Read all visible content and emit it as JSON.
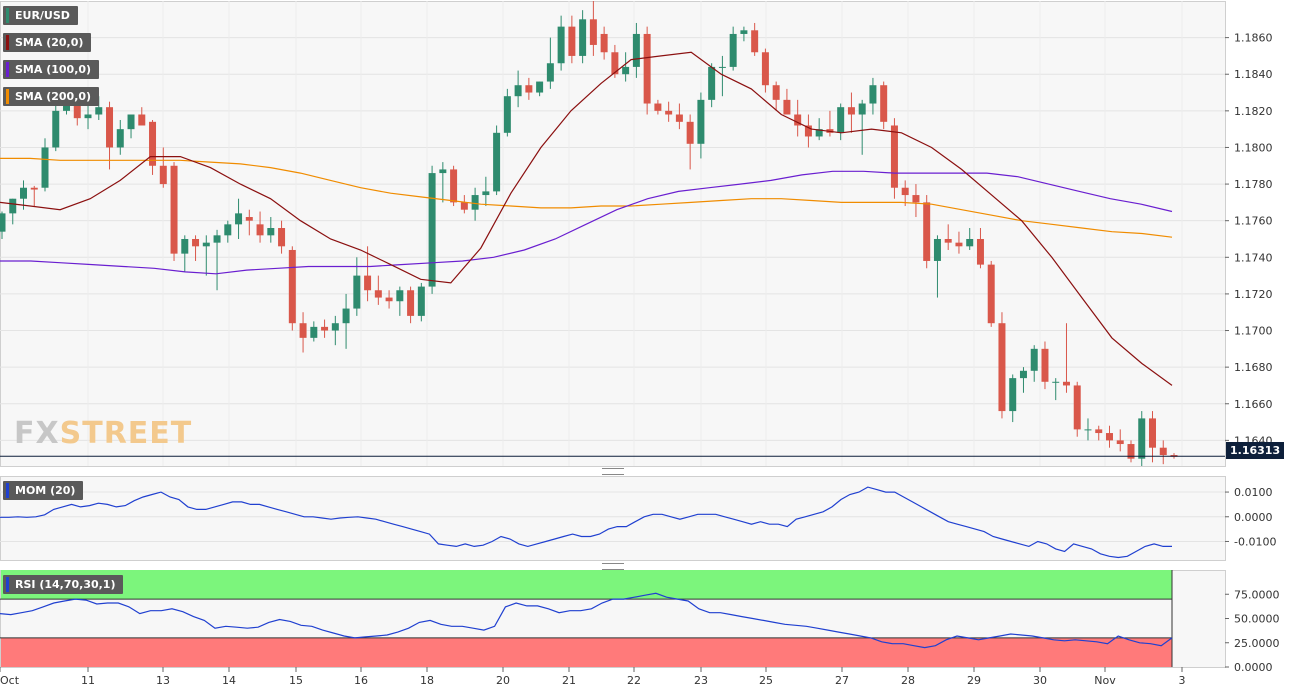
{
  "legend": {
    "pair": "EUR/USD",
    "sma20": "SMA (20,0)",
    "sma100": "SMA (100,0)",
    "sma200": "SMA (200,0)",
    "mom": "MOM (20)",
    "rsi": "RSI (14,70,30,1)"
  },
  "logo": {
    "part1": "FX",
    "part2": "STREET"
  },
  "colors": {
    "up": "#2e8b6e",
    "down": "#d9574a",
    "sma20": "#8b1010",
    "sma100": "#6a1fd0",
    "sma200": "#f08c00",
    "mom": "#2040d0",
    "rsi": "#2040d0",
    "rsi_upper": "#7cf57c",
    "rsi_lower": "#ff7a7a"
  },
  "chart_data": [
    {
      "type": "candlestick",
      "title": "EUR/USD",
      "ylim": [
        1.1626,
        1.188
      ],
      "yticks": [
        "1.1640",
        "1.1660",
        "1.1680",
        "1.1700",
        "1.1720",
        "1.1740",
        "1.1760",
        "1.1780",
        "1.1800",
        "1.1820",
        "1.1840",
        "1.1860"
      ],
      "last_price": "1.16313",
      "candles": [
        [
          1.1754,
          1.1765,
          1.175,
          1.1764
        ],
        [
          1.1764,
          1.1772,
          1.1758,
          1.1772
        ],
        [
          1.1772,
          1.1782,
          1.1766,
          1.1778
        ],
        [
          1.1778,
          1.1779,
          1.1768,
          1.1777
        ],
        [
          1.1778,
          1.1805,
          1.1776,
          1.18
        ],
        [
          1.18,
          1.1825,
          1.1798,
          1.182
        ],
        [
          1.182,
          1.1828,
          1.1818,
          1.1826
        ],
        [
          1.1826,
          1.183,
          1.1812,
          1.1816
        ],
        [
          1.1816,
          1.1825,
          1.181,
          1.1818
        ],
        [
          1.1818,
          1.1828,
          1.1815,
          1.1822
        ],
        [
          1.1822,
          1.1825,
          1.1788,
          1.18
        ],
        [
          1.18,
          1.1815,
          1.1796,
          1.181
        ],
        [
          1.181,
          1.1818,
          1.1805,
          1.1818
        ],
        [
          1.1818,
          1.1822,
          1.1812,
          1.1812
        ],
        [
          1.1814,
          1.1815,
          1.1785,
          1.179
        ],
        [
          1.179,
          1.18,
          1.1778,
          1.178
        ],
        [
          1.179,
          1.1792,
          1.1738,
          1.1742
        ],
        [
          1.1742,
          1.1752,
          1.1732,
          1.175
        ],
        [
          1.175,
          1.1752,
          1.1738,
          1.1746
        ],
        [
          1.1746,
          1.1752,
          1.173,
          1.1748
        ],
        [
          1.1748,
          1.1755,
          1.1722,
          1.1752
        ],
        [
          1.1752,
          1.176,
          1.1748,
          1.1758
        ],
        [
          1.1758,
          1.1772,
          1.175,
          1.1764
        ],
        [
          1.1762,
          1.1766,
          1.1752,
          1.176
        ],
        [
          1.1758,
          1.1765,
          1.1748,
          1.1752
        ],
        [
          1.1752,
          1.1762,
          1.1748,
          1.1756
        ],
        [
          1.1756,
          1.176,
          1.1742,
          1.1746
        ],
        [
          1.1744,
          1.1746,
          1.17,
          1.1704
        ],
        [
          1.1704,
          1.171,
          1.1688,
          1.1696
        ],
        [
          1.1696,
          1.1705,
          1.1694,
          1.1702
        ],
        [
          1.1702,
          1.1706,
          1.1696,
          1.17
        ],
        [
          1.17,
          1.1708,
          1.1692,
          1.1704
        ],
        [
          1.1704,
          1.172,
          1.169,
          1.1712
        ],
        [
          1.1712,
          1.174,
          1.1708,
          1.173
        ],
        [
          1.173,
          1.1746,
          1.1716,
          1.1722
        ],
        [
          1.1722,
          1.173,
          1.1714,
          1.1718
        ],
        [
          1.1718,
          1.1722,
          1.1712,
          1.1716
        ],
        [
          1.1716,
          1.1724,
          1.1708,
          1.1722
        ],
        [
          1.1722,
          1.1724,
          1.1704,
          1.1708
        ],
        [
          1.1708,
          1.1726,
          1.1705,
          1.1724
        ],
        [
          1.1724,
          1.179,
          1.172,
          1.1786
        ],
        [
          1.1786,
          1.1792,
          1.177,
          1.1788
        ],
        [
          1.1788,
          1.179,
          1.1768,
          1.177
        ],
        [
          1.177,
          1.1774,
          1.1764,
          1.1766
        ],
        [
          1.1766,
          1.1778,
          1.176,
          1.1774
        ],
        [
          1.1774,
          1.1784,
          1.1768,
          1.1776
        ],
        [
          1.1776,
          1.1812,
          1.1774,
          1.1808
        ],
        [
          1.1808,
          1.1832,
          1.1806,
          1.1828
        ],
        [
          1.1828,
          1.1842,
          1.1822,
          1.1834
        ],
        [
          1.1834,
          1.1838,
          1.1826,
          1.183
        ],
        [
          1.183,
          1.1836,
          1.1828,
          1.1836
        ],
        [
          1.1836,
          1.186,
          1.1832,
          1.1846
        ],
        [
          1.1846,
          1.1872,
          1.1842,
          1.1866
        ],
        [
          1.1866,
          1.1872,
          1.1846,
          1.185
        ],
        [
          1.185,
          1.1875,
          1.1846,
          1.187
        ],
        [
          1.187,
          1.188,
          1.185,
          1.1856
        ],
        [
          1.1862,
          1.1866,
          1.1848,
          1.1852
        ],
        [
          1.1852,
          1.1856,
          1.1838,
          1.184
        ],
        [
          1.184,
          1.1852,
          1.1836,
          1.1844
        ],
        [
          1.1844,
          1.1868,
          1.1838,
          1.1862
        ],
        [
          1.1862,
          1.1866,
          1.1818,
          1.1824
        ],
        [
          1.1824,
          1.1826,
          1.1818,
          1.182
        ],
        [
          1.182,
          1.1825,
          1.1814,
          1.1818
        ],
        [
          1.1818,
          1.1824,
          1.181,
          1.1814
        ],
        [
          1.1814,
          1.1818,
          1.1788,
          1.1802
        ],
        [
          1.1802,
          1.183,
          1.1794,
          1.1826
        ],
        [
          1.1826,
          1.1846,
          1.1822,
          1.1844
        ],
        [
          1.1844,
          1.185,
          1.1828,
          1.1844
        ],
        [
          1.1844,
          1.1866,
          1.1842,
          1.1862
        ],
        [
          1.1862,
          1.1866,
          1.1858,
          1.1864
        ],
        [
          1.1864,
          1.1868,
          1.185,
          1.1852
        ],
        [
          1.1852,
          1.1854,
          1.183,
          1.1834
        ],
        [
          1.1834,
          1.1836,
          1.182,
          1.1826
        ],
        [
          1.1826,
          1.1832,
          1.1818,
          1.1818
        ],
        [
          1.1818,
          1.1826,
          1.1806,
          1.1812
        ],
        [
          1.1812,
          1.1818,
          1.18,
          1.1806
        ],
        [
          1.1806,
          1.1816,
          1.1804,
          1.181
        ],
        [
          1.181,
          1.182,
          1.1806,
          1.1808
        ],
        [
          1.1808,
          1.1824,
          1.1804,
          1.1822
        ],
        [
          1.1822,
          1.183,
          1.1808,
          1.1818
        ],
        [
          1.1818,
          1.1826,
          1.1796,
          1.1824
        ],
        [
          1.1824,
          1.1838,
          1.1818,
          1.1834
        ],
        [
          1.1834,
          1.1836,
          1.181,
          1.1814
        ],
        [
          1.1812,
          1.1816,
          1.1772,
          1.1778
        ],
        [
          1.1778,
          1.1782,
          1.1768,
          1.1774
        ],
        [
          1.1774,
          1.178,
          1.1762,
          1.177
        ],
        [
          1.177,
          1.1774,
          1.1734,
          1.1738
        ],
        [
          1.1738,
          1.1752,
          1.1718,
          1.175
        ],
        [
          1.175,
          1.1758,
          1.1744,
          1.1748
        ],
        [
          1.1748,
          1.1754,
          1.1742,
          1.1746
        ],
        [
          1.1746,
          1.1756,
          1.1744,
          1.175
        ],
        [
          1.175,
          1.1756,
          1.1734,
          1.1736
        ],
        [
          1.1736,
          1.1738,
          1.1702,
          1.1704
        ],
        [
          1.1704,
          1.171,
          1.1652,
          1.1656
        ],
        [
          1.1656,
          1.1676,
          1.165,
          1.1674
        ],
        [
          1.1674,
          1.168,
          1.1666,
          1.1678
        ],
        [
          1.1678,
          1.1692,
          1.1672,
          1.169
        ],
        [
          1.169,
          1.1694,
          1.1668,
          1.1672
        ],
        [
          1.1672,
          1.1674,
          1.1662,
          1.1672
        ],
        [
          1.1672,
          1.1704,
          1.1666,
          1.167
        ],
        [
          1.167,
          1.1672,
          1.1642,
          1.1646
        ],
        [
          1.1646,
          1.1652,
          1.164,
          1.1646
        ],
        [
          1.1646,
          1.1648,
          1.164,
          1.1644
        ],
        [
          1.1644,
          1.1648,
          1.1636,
          1.164
        ],
        [
          1.164,
          1.1646,
          1.1634,
          1.1638
        ],
        [
          1.1638,
          1.164,
          1.1628,
          1.163
        ],
        [
          1.163,
          1.1656,
          1.1626,
          1.1652
        ],
        [
          1.1652,
          1.1656,
          1.1628,
          1.1636
        ],
        [
          1.1636,
          1.164,
          1.1627,
          1.1632
        ],
        [
          1.1632,
          1.1633,
          1.163,
          1.1631
        ]
      ],
      "sma20": [
        1.177,
        1.1768,
        1.1766,
        1.1772,
        1.1782,
        1.1795,
        1.1795,
        1.1789,
        1.178,
        1.1772,
        1.176,
        1.175,
        1.1744,
        1.1736,
        1.1728,
        1.1726,
        1.1745,
        1.1775,
        1.18,
        1.182,
        1.1835,
        1.1848,
        1.185,
        1.1852,
        1.184,
        1.1832,
        1.1818,
        1.181,
        1.1808,
        1.181,
        1.1808,
        1.18,
        1.1788,
        1.1774,
        1.176,
        1.174,
        1.1718,
        1.1696,
        1.1682,
        1.167
      ],
      "sma100": [
        1.1738,
        1.1738,
        1.1737,
        1.1736,
        1.1735,
        1.1734,
        1.1732,
        1.1731,
        1.1733,
        1.1734,
        1.1735,
        1.1735,
        1.1735,
        1.1736,
        1.1737,
        1.1738,
        1.174,
        1.1744,
        1.175,
        1.1758,
        1.1766,
        1.1772,
        1.1776,
        1.1778,
        1.178,
        1.1782,
        1.1785,
        1.1787,
        1.1787,
        1.1786,
        1.1786,
        1.1786,
        1.1786,
        1.1784,
        1.178,
        1.1776,
        1.1772,
        1.1769,
        1.1765
      ],
      "sma200": [
        1.1794,
        1.1794,
        1.1793,
        1.1793,
        1.1793,
        1.1793,
        1.1793,
        1.1792,
        1.1791,
        1.1789,
        1.1786,
        1.1782,
        1.1778,
        1.1775,
        1.1773,
        1.1771,
        1.1769,
        1.1768,
        1.1767,
        1.1767,
        1.1768,
        1.1768,
        1.1769,
        1.177,
        1.1771,
        1.1772,
        1.1772,
        1.1771,
        1.177,
        1.177,
        1.177,
        1.1769,
        1.1766,
        1.1763,
        1.176,
        1.1758,
        1.1756,
        1.1754,
        1.1753,
        1.1751
      ]
    },
    {
      "type": "line",
      "title": "MOM (20)",
      "ylim": [
        -0.0175,
        0.0165
      ],
      "yticks": [
        "0.0100",
        "0.0000",
        "-0.0100"
      ],
      "series": [
        {
          "name": "MOM (20)",
          "values": [
            -0.0002,
            -0.0002,
            0.0,
            -0.0002,
            0.0,
            0.0008,
            0.003,
            0.004,
            0.005,
            0.004,
            0.0045,
            0.0055,
            0.005,
            0.004,
            0.0045,
            0.0065,
            0.008,
            0.009,
            0.01,
            0.008,
            0.007,
            0.004,
            0.003,
            0.003,
            0.004,
            0.005,
            0.006,
            0.006,
            0.005,
            0.005,
            0.004,
            0.003,
            0.002,
            0.001,
            0.0,
            0.0,
            -0.0005,
            -0.001,
            -0.0005,
            -0.0002,
            0.0,
            -0.0005,
            -0.001,
            -0.002,
            -0.003,
            -0.004,
            -0.005,
            -0.006,
            -0.007,
            -0.011,
            -0.0115,
            -0.012,
            -0.011,
            -0.012,
            -0.0115,
            -0.01,
            -0.008,
            -0.009,
            -0.011,
            -0.012,
            -0.011,
            -0.01,
            -0.009,
            -0.008,
            -0.007,
            -0.008,
            -0.008,
            -0.007,
            -0.005,
            -0.004,
            -0.004,
            -0.002,
            0.0,
            0.001,
            0.001,
            0.0,
            -0.001,
            0.0,
            0.001,
            0.001,
            0.001,
            0.0,
            -0.001,
            -0.002,
            -0.003,
            -0.002,
            -0.003,
            -0.003,
            -0.004,
            -0.001,
            0.0,
            0.001,
            0.002,
            0.004,
            0.007,
            0.009,
            0.01,
            0.012,
            0.011,
            0.01,
            0.01,
            0.008,
            0.006,
            0.004,
            0.002,
            0.0,
            -0.002,
            -0.003,
            -0.004,
            -0.005,
            -0.006,
            -0.008,
            -0.009,
            -0.01,
            -0.011,
            -0.012,
            -0.01,
            -0.011,
            -0.013,
            -0.014,
            -0.011,
            -0.012,
            -0.013,
            -0.015,
            -0.016,
            -0.0165,
            -0.016,
            -0.014,
            -0.012,
            -0.011,
            -0.012,
            -0.012
          ]
        }
      ]
    },
    {
      "type": "line",
      "title": "RSI (14,70,30,1)",
      "ylim": [
        0,
        100
      ],
      "upper_band": 70,
      "lower_band": 30,
      "yticks": [
        "75.0000",
        "50.0000",
        "25.0000",
        "0.0000"
      ],
      "series": [
        {
          "name": "RSI (14,70,30,1)",
          "values": [
            55,
            54,
            56,
            58,
            62,
            66,
            68,
            70,
            69,
            65,
            66,
            66,
            62,
            55,
            58,
            58,
            60,
            57,
            52,
            48,
            40,
            42,
            41,
            40,
            41,
            46,
            49,
            47,
            43,
            42,
            38,
            35,
            32,
            30,
            31,
            32,
            33,
            36,
            40,
            46,
            48,
            44,
            42,
            42,
            40,
            38,
            42,
            62,
            66,
            63,
            63,
            60,
            56,
            58,
            58,
            60,
            66,
            70,
            70,
            72,
            74,
            76,
            72,
            70,
            68,
            60,
            56,
            56,
            54,
            52,
            50,
            48,
            46,
            44,
            43,
            42,
            40,
            38,
            36,
            34,
            32,
            30,
            26,
            24,
            24,
            22,
            20,
            22,
            28,
            32,
            30,
            28,
            30,
            32,
            34,
            33,
            32,
            30,
            28,
            27,
            28,
            27,
            26,
            24,
            32,
            28,
            25,
            24,
            22,
            30
          ]
        }
      ]
    }
  ],
  "x_axis": {
    "labels": [
      {
        "label": "Oct",
        "pos": 0.0
      },
      {
        "label": "11",
        "pos": 88
      },
      {
        "label": "13",
        "pos": 163
      },
      {
        "label": "14",
        "pos": 229
      },
      {
        "label": "15",
        "pos": 296
      },
      {
        "label": "16",
        "pos": 361
      },
      {
        "label": "18",
        "pos": 427
      },
      {
        "label": "20",
        "pos": 503
      },
      {
        "label": "21",
        "pos": 569
      },
      {
        "label": "22",
        "pos": 634
      },
      {
        "label": "23",
        "pos": 701
      },
      {
        "label": "25",
        "pos": 766
      },
      {
        "label": "27",
        "pos": 842
      },
      {
        "label": "28",
        "pos": 908
      },
      {
        "label": "29",
        "pos": 974
      },
      {
        "label": "30",
        "pos": 1040
      },
      {
        "label": "Nov",
        "pos": 1105
      },
      {
        "label": "3",
        "pos": 1182
      }
    ]
  }
}
